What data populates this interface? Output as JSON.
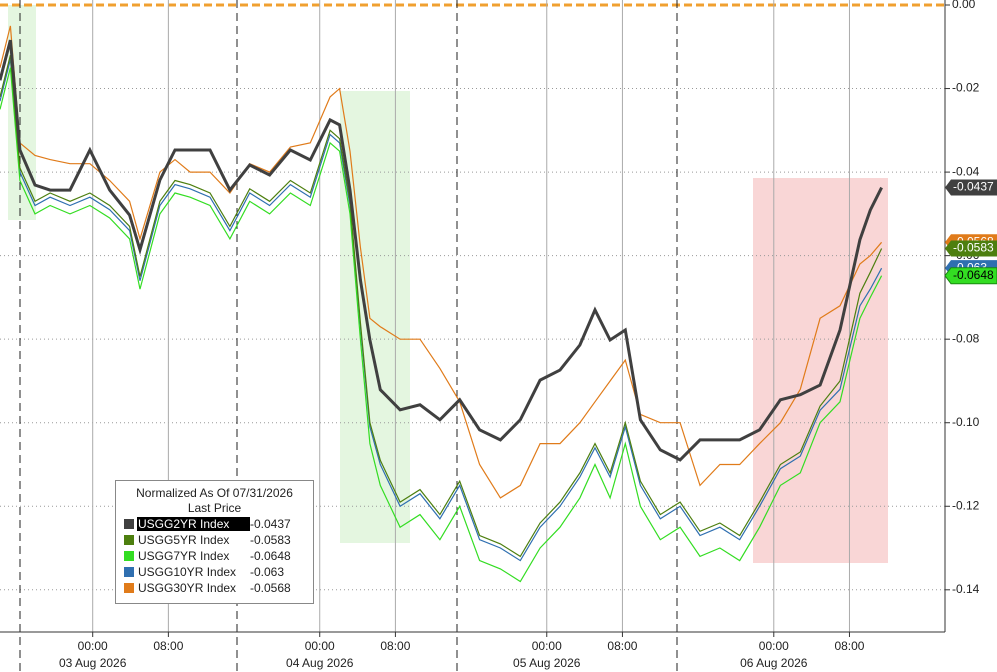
{
  "chart_data": {
    "type": "line",
    "x": [
      14.2,
      15.3,
      16.3,
      17.9,
      19.5,
      21.6,
      23.7,
      25.8,
      27.9,
      29.0,
      31.1,
      32.7,
      34.3,
      36.4,
      38.5,
      40.6,
      42.7,
      44.9,
      47.0,
      49.1,
      50.1,
      51.2,
      52.3,
      53.3,
      54.4,
      56.5,
      58.6,
      60.7,
      62.8,
      64.9,
      67.1,
      69.2,
      71.3,
      73.4,
      75.5,
      77.1,
      78.7,
      80.3,
      81.9,
      84.0,
      86.1,
      88.2,
      90.3,
      92.4,
      94.5,
      96.7,
      98.8,
      100.9,
      103.0,
      105.1,
      106.2,
      107.4
    ],
    "series": [
      {
        "name": "USGG30YR Index",
        "color": "#e07b1a",
        "values": [
          -0.015,
          -0.005,
          -0.033,
          -0.036,
          -0.037,
          -0.038,
          -0.038,
          -0.042,
          -0.047,
          -0.056,
          -0.04,
          -0.037,
          -0.04,
          -0.04,
          -0.045,
          -0.038,
          -0.04,
          -0.034,
          -0.033,
          -0.022,
          -0.02,
          -0.035,
          -0.058,
          -0.075,
          -0.077,
          -0.08,
          -0.08,
          -0.087,
          -0.095,
          -0.11,
          -0.118,
          -0.115,
          -0.105,
          -0.105,
          -0.1,
          -0.095,
          -0.09,
          -0.085,
          -0.098,
          -0.1,
          -0.1,
          -0.115,
          -0.11,
          -0.11,
          -0.105,
          -0.1,
          -0.092,
          -0.075,
          -0.072,
          -0.062,
          -0.06,
          -0.0568
        ]
      },
      {
        "name": "USGG10YR Index",
        "color": "#2f6fb0",
        "values": [
          -0.023,
          -0.013,
          -0.04,
          -0.048,
          -0.046,
          -0.048,
          -0.046,
          -0.049,
          -0.054,
          -0.066,
          -0.048,
          -0.043,
          -0.044,
          -0.046,
          -0.054,
          -0.045,
          -0.048,
          -0.043,
          -0.046,
          -0.031,
          -0.033,
          -0.048,
          -0.077,
          -0.101,
          -0.11,
          -0.12,
          -0.117,
          -0.123,
          -0.115,
          -0.128,
          -0.13,
          -0.133,
          -0.125,
          -0.12,
          -0.113,
          -0.106,
          -0.113,
          -0.101,
          -0.115,
          -0.123,
          -0.12,
          -0.127,
          -0.125,
          -0.128,
          -0.12,
          -0.111,
          -0.108,
          -0.097,
          -0.092,
          -0.072,
          -0.068,
          -0.063
        ]
      },
      {
        "name": "USGG7YR Index",
        "color": "#33dd22",
        "values": [
          -0.025,
          -0.015,
          -0.042,
          -0.05,
          -0.048,
          -0.05,
          -0.048,
          -0.051,
          -0.056,
          -0.068,
          -0.05,
          -0.045,
          -0.046,
          -0.048,
          -0.056,
          -0.047,
          -0.05,
          -0.045,
          -0.048,
          -0.033,
          -0.035,
          -0.05,
          -0.08,
          -0.105,
          -0.115,
          -0.125,
          -0.122,
          -0.128,
          -0.12,
          -0.133,
          -0.135,
          -0.138,
          -0.13,
          -0.125,
          -0.118,
          -0.11,
          -0.118,
          -0.105,
          -0.12,
          -0.128,
          -0.125,
          -0.132,
          -0.13,
          -0.133,
          -0.125,
          -0.115,
          -0.112,
          -0.1,
          -0.095,
          -0.075,
          -0.07,
          -0.0648
        ]
      },
      {
        "name": "USGG5YR Index",
        "color": "#4d7f0f",
        "values": [
          -0.022,
          -0.012,
          -0.039,
          -0.047,
          -0.045,
          -0.047,
          -0.045,
          -0.048,
          -0.053,
          -0.065,
          -0.047,
          -0.042,
          -0.043,
          -0.045,
          -0.053,
          -0.044,
          -0.047,
          -0.042,
          -0.045,
          -0.03,
          -0.032,
          -0.047,
          -0.076,
          -0.1,
          -0.109,
          -0.119,
          -0.116,
          -0.122,
          -0.114,
          -0.127,
          -0.129,
          -0.132,
          -0.124,
          -0.119,
          -0.112,
          -0.105,
          -0.112,
          -0.1,
          -0.114,
          -0.122,
          -0.119,
          -0.126,
          -0.124,
          -0.127,
          -0.119,
          -0.11,
          -0.107,
          -0.096,
          -0.09,
          -0.069,
          -0.064,
          -0.0583
        ]
      },
      {
        "name": "USGG2YR Index",
        "color": "#404040",
        "values": [
          -0.018,
          -0.0084,
          -0.0347,
          -0.0431,
          -0.0443,
          -0.0443,
          -0.0347,
          -0.0443,
          -0.0503,
          -0.0586,
          -0.0419,
          -0.0347,
          -0.0347,
          -0.0347,
          -0.0443,
          -0.0383,
          -0.0407,
          -0.0347,
          -0.0371,
          -0.0275,
          -0.0287,
          -0.0443,
          -0.0658,
          -0.0802,
          -0.0921,
          -0.0969,
          -0.0957,
          -0.0993,
          -0.0945,
          -0.1017,
          -0.1041,
          -0.0993,
          -0.0898,
          -0.0874,
          -0.0814,
          -0.073,
          -0.0802,
          -0.0778,
          -0.0993,
          -0.1065,
          -0.1089,
          -0.1041,
          -0.1041,
          -0.1041,
          -0.1017,
          -0.0945,
          -0.0933,
          -0.091,
          -0.0778,
          -0.0562,
          -0.0491,
          -0.0437
        ]
      }
    ],
    "legend_order": [
      4,
      3,
      2,
      1,
      0
    ],
    "legend_title": "Normalized As Of 07/31/2026",
    "legend_subtitle": "Last Price",
    "xlim": [
      14.2,
      114.1
    ],
    "xticks": [
      {
        "value": 24,
        "label": "00:00"
      },
      {
        "value": 32,
        "label": "08:00"
      },
      {
        "value": 48,
        "label": "00:00"
      },
      {
        "value": 56,
        "label": "08:00"
      },
      {
        "value": 72,
        "label": "00:00"
      },
      {
        "value": 80,
        "label": "08:00"
      },
      {
        "value": 96,
        "label": "00:00"
      },
      {
        "value": 104,
        "label": "08:00"
      }
    ],
    "date_labels": [
      {
        "value": 24,
        "label": "03 Aug 2026"
      },
      {
        "value": 48,
        "label": "04 Aug 2026"
      },
      {
        "value": 72,
        "label": "05 Aug 2026"
      },
      {
        "value": 96,
        "label": "06 Aug 2026"
      }
    ],
    "ylim": [
      -0.1501,
      0.0012
    ],
    "yticks": [
      {
        "value": 0,
        "label": "0.00"
      },
      -0.02,
      -0.04,
      -0.06,
      -0.08,
      {
        "value": -0.1,
        "label": "-0.10"
      },
      -0.12,
      -0.14
    ],
    "grid": true
  }
}
